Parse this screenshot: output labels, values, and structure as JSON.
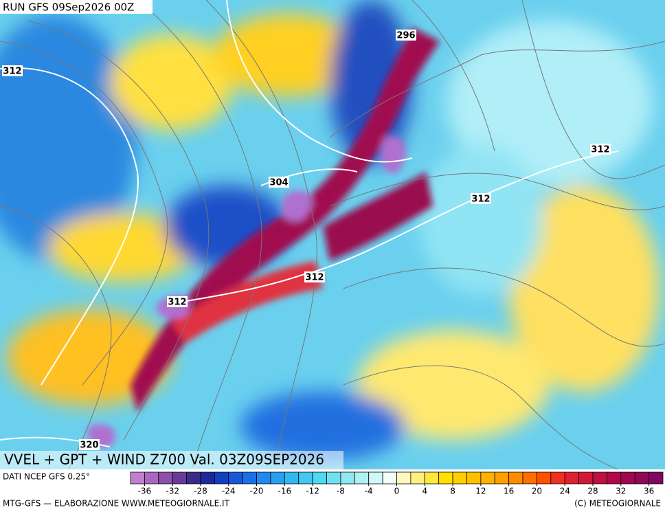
{
  "header": {
    "run": "RUN GFS 09Sep2026 00Z"
  },
  "map": {
    "title": "VVEL + GPT + WIND Z700 Val. 03Z09SEP2026",
    "contour_labels": [
      "296",
      "312",
      "304",
      "312",
      "312",
      "312",
      "312",
      "320"
    ]
  },
  "colorbar": {
    "source": "DATI NCEP GFS 0.25°",
    "range": [
      -38,
      38
    ],
    "colors": [
      "#c080d0",
      "#a868c0",
      "#8c50a8",
      "#6a3a9a",
      "#3a2a8a",
      "#1a2a9a",
      "#1040c0",
      "#1858d8",
      "#1a70e8",
      "#2088f0",
      "#28a0f0",
      "#30b8f0",
      "#40c8f0",
      "#50d8f0",
      "#70e0f0",
      "#90e8f0",
      "#b0f0f0",
      "#d0f8f8",
      "#f0fff8",
      "#fff8c0",
      "#fff080",
      "#ffe840",
      "#ffe000",
      "#ffd000",
      "#ffc000",
      "#ffb000",
      "#ffa000",
      "#ff8c00",
      "#ff7000",
      "#ff5000",
      "#f03020",
      "#e02030",
      "#d01838",
      "#c01040",
      "#b00848",
      "#a00850",
      "#900858",
      "#800860"
    ],
    "ticks": [
      -36,
      -32,
      -28,
      -24,
      -20,
      -16,
      -12,
      -8,
      -4,
      0,
      4,
      8,
      12,
      16,
      20,
      24,
      28,
      32,
      36
    ]
  },
  "footer": {
    "left": "MTG-GFS — ELABORAZIONE WWW.METEOGIORNALE.IT",
    "right": "(C) METEOGIORNALE"
  }
}
